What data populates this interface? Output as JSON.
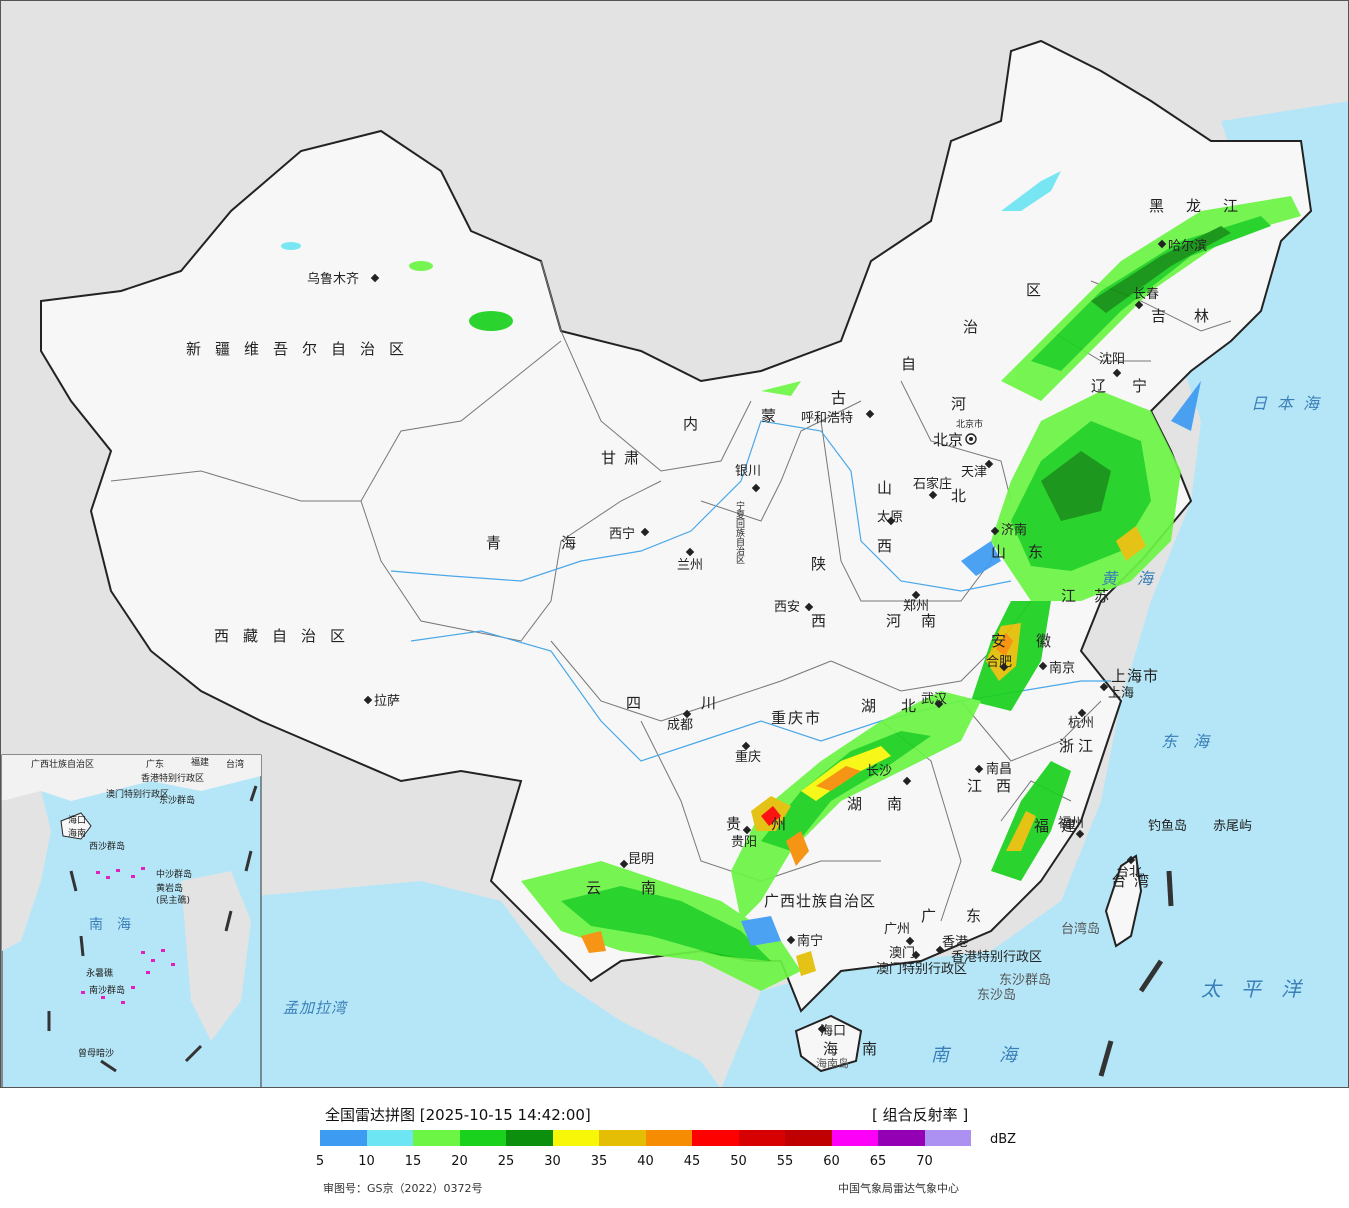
{
  "title": "全国雷达拼图 [2025-10-15 14:42:00]",
  "product": "[ 组合反射率 ]",
  "unit": "dBZ",
  "scale_ticks": [
    "5",
    "10",
    "15",
    "20",
    "25",
    "30",
    "35",
    "40",
    "45",
    "50",
    "55",
    "60",
    "65",
    "70"
  ],
  "colors": [
    "#3d9bf2",
    "#6ee5f2",
    "#6cf545",
    "#1ad11d",
    "#0c8f0c",
    "#f7f707",
    "#e4be04",
    "#f58c02",
    "#fd0100",
    "#d60100",
    "#c00000",
    "#fc00f8",
    "#9400b3",
    "#ac91f2"
  ],
  "review_no": "审图号：GS京（2022）0372号",
  "publisher": "中国气象局雷达气象中心",
  "provinces": {
    "xinjiang": "新疆维吾尔自治区",
    "xizang": "西藏自治区",
    "qinghai": "青海",
    "gansu": "甘肃",
    "neimenggu_1": "内",
    "neimenggu_2": "蒙",
    "neimenggu_3": "古",
    "neimenggu_4": "自",
    "neimenggu_5": "治",
    "neimenggu_6": "区",
    "heilongjiang": "黑龙江",
    "jilin": "吉林",
    "liaoning": "辽宁",
    "hebei_1": "河",
    "hebei_2": "北",
    "shanxi_1": "山",
    "shanxi_2": "西",
    "shaanxi_1": "陕",
    "shaanxi_2": "西",
    "shandong": "山东",
    "henan": "河南",
    "jiangsu": "江苏",
    "anhui": "安徽",
    "hubei": "湖北",
    "hunan": "湖南",
    "sichuan": "四川",
    "chongqing": "重庆市",
    "guizhou": "贵州",
    "yunnan": "云南",
    "guangxi": "广西壮族自治区",
    "guangdong": "广东",
    "jiangxi": "江西",
    "zhejiang": "浙江",
    "fujian": "福建",
    "taiwan": "台湾",
    "hainan": "海南",
    "ningxia": "宁夏回族自治区",
    "shanghai": "上海市",
    "hk": "香港特别行政区",
    "macau": "澳门特别行政区"
  },
  "cities": {
    "urumqi": "乌鲁木齐",
    "lhasa": "拉萨",
    "xining": "西宁",
    "lanzhou": "兰州",
    "yinchuan": "银川",
    "hohhot": "呼和浩特",
    "beijing": "北京",
    "beijing_small": "北京市",
    "tianjin": "天津",
    "shijiazhuang": "石家庄",
    "taiyuan": "太原",
    "jinan": "济南",
    "zhengzhou": "郑州",
    "xian": "西安",
    "harbin": "哈尔滨",
    "changchun": "长春",
    "shenyang": "沈阳",
    "nanjing": "南京",
    "hefei": "合肥",
    "wuhan": "武汉",
    "shanghai": "上海",
    "hangzhou": "杭州",
    "nanchang": "南昌",
    "changsha": "长沙",
    "fuzhou": "福州",
    "taipei": "台北",
    "chengdu": "成都",
    "chongqing": "重庆",
    "guiyang": "贵阳",
    "kunming": "昆明",
    "nanning": "南宁",
    "guangzhou": "广州",
    "hongkong": "香港",
    "macau": "澳门",
    "haikou": "海口"
  },
  "seas": {
    "japan_sea": "日本海",
    "yellow_sea": "黄海",
    "east_sea": "东海",
    "pacific": "太平洋",
    "south_sea": "南海",
    "bengal": "孟加拉湾"
  },
  "islands": {
    "diaoyu": "钓鱼岛",
    "chiwei": "赤尾屿",
    "taiwan_island": "台湾岛",
    "dongsha_islands": "东沙群岛",
    "dongsha_island": "东沙岛",
    "hainan_island": "海南岛"
  },
  "inset": {
    "nanhai": "南海",
    "zhongsha": "中沙群岛",
    "huangyan": "黄岩岛",
    "minzhu": "(民主礁)",
    "xisha": "西沙群岛",
    "nansha": "南沙群岛",
    "yongshu": "永暑礁",
    "zengmu": "曾母暗沙",
    "haikou": "海口",
    "hainan": "海南",
    "dongsha": "东沙群岛",
    "taiwan": "台湾",
    "guangdong": "广东",
    "fujian": "福建",
    "guangxi": "广西壮族自治区",
    "xianggang": "香港特别行政区",
    "aomen": "澳门特别行政区"
  }
}
